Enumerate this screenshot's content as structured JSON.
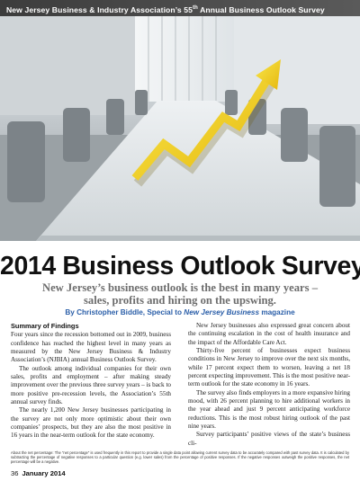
{
  "banner": {
    "text_before": "New Jersey Business & Industry Association’s 55",
    "text_sup": "th",
    "text_after": " Annual Business Outlook Survey"
  },
  "article": {
    "title": "2014 Business Outlook Survey",
    "subtitle": "New Jersey’s business outlook is the best in many years – sales, profits and hiring on the upswing.",
    "byline_prefix": "By Christopher Biddle, Special to ",
    "byline_magazine": "New Jersey Business",
    "byline_suffix": " magazine",
    "section_heading": "Summary of Findings",
    "left_paragraphs": [
      "Four years since the recession bottomed out in 2009, business confidence has reached the highest level in many years as measured by the New Jersey Business & Industry Association’s (NJBIA) annual Business Outlook Survey.",
      "The outlook among individual companies for their own sales, profits and employment – after making steady improvement over the previous three survey years – is back to more positive pre-recession levels, the Association’s 55th annual survey finds.",
      "The nearly 1,200 New Jersey businesses participating in the survey are not only more optimistic about their own companies’ prospects, but they are also the most positive in 16 years in the near-term outlook for the state economy."
    ],
    "right_paragraphs": [
      "New Jersey businesses also expressed great concern about the continuing escalation in the cost of health insurance and the impact of the Affordable Care Act.",
      "Thirty-five percent of businesses expect business conditions in New Jersey to improve over the next six months, while 17 percent expect them to worsen, leaving a net 18 percent expecting improvement. This is the most positive near-term outlook for the state economy in 16 years.",
      "The survey also finds employers in a more expansive hiring mood, with 26 percent planning to hire additional workers in the year ahead and just 9 percent anticipating workforce reductions. This is the most robust hiring outlook of the past nine years.",
      "Survey participants’ positive views of the state’s business cli-"
    ],
    "footnote": "About the net percentage: The “net percentage” is used frequently in this report to provide a single data point allowing current survey data to be accurately compared with past survey data. It is calculated by subtracting the percentage of negative responses to a particular question (e.g. lower sales) from the percentage of positive responses. If the negative responses outweigh the positive responses, the net percentage will be a negative."
  },
  "folio": {
    "page_number": "36",
    "date": "January 2014"
  },
  "colors": {
    "banner_bg": "#3c3c3c",
    "arrow_yellow": "#f2d21a",
    "byline_blue": "#2a5ea8"
  }
}
